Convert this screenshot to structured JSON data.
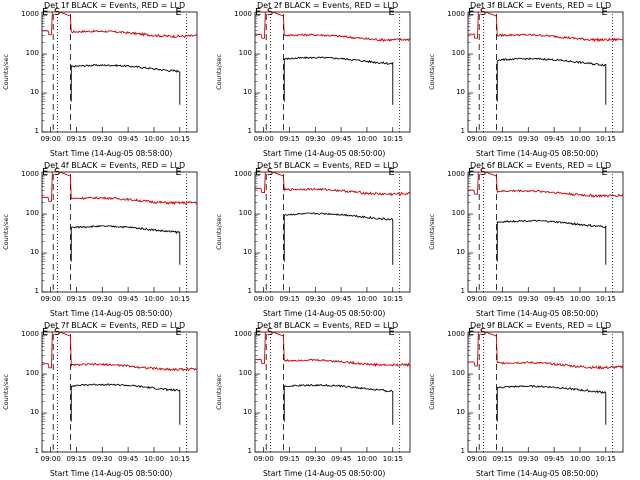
{
  "chart_data": [
    {
      "type": "line",
      "title": "Det 1f BLACK = Events, RED = LLD",
      "xlabel": "Start Time (14-Aug-05 08:58:00)",
      "ylabel": "Counts/sec",
      "xticks": [
        "09:00",
        "09:15",
        "09:30",
        "09:45",
        "10:00",
        "10:15"
      ],
      "yticks": [
        "1",
        "10",
        "100",
        "1000"
      ],
      "ylim": [
        1,
        1200
      ],
      "log_y": true,
      "markers": [
        "E",
        "S",
        "E"
      ],
      "series": [
        {
          "name": "RED = LLD",
          "color": "#cc0000",
          "level": 370
        },
        {
          "name": "BLACK = Events",
          "color": "#000000",
          "level": 48
        }
      ]
    },
    {
      "type": "line",
      "title": "Det 2f BLACK = Events, RED = LLD",
      "xlabel": "Start Time (14-Aug-05 08:50:00)",
      "ylabel": "Counts/sec",
      "xticks": [
        "09:00",
        "09:15",
        "09:30",
        "09:45",
        "10:00",
        "10:15"
      ],
      "yticks": [
        "1",
        "10",
        "100",
        "1000"
      ],
      "ylim": [
        1,
        1200
      ],
      "log_y": true,
      "markers": [
        "E",
        "S",
        "E"
      ],
      "series": [
        {
          "name": "RED = LLD",
          "color": "#cc0000",
          "level": 300
        },
        {
          "name": "BLACK = Events",
          "color": "#000000",
          "level": 75
        }
      ]
    },
    {
      "type": "line",
      "title": "Det 3f BLACK = Events, RED = LLD",
      "xlabel": "Start Time (14-Aug-05 08:50:00)",
      "ylabel": "Counts/sec",
      "xticks": [
        "09:00",
        "09:15",
        "09:30",
        "09:45",
        "10:00",
        "10:15"
      ],
      "yticks": [
        "1",
        "10",
        "100",
        "1000"
      ],
      "ylim": [
        1,
        1200
      ],
      "log_y": true,
      "markers": [
        "E",
        "S",
        "E"
      ],
      "series": [
        {
          "name": "RED = LLD",
          "color": "#cc0000",
          "level": 300
        },
        {
          "name": "BLACK = Events",
          "color": "#000000",
          "level": 70
        }
      ]
    },
    {
      "type": "line",
      "title": "Det 4f BLACK = Events, RED = LLD",
      "xlabel": "Start Time (14-Aug-05 08:50:00)",
      "ylabel": "Counts/sec",
      "xticks": [
        "09:00",
        "09:15",
        "09:30",
        "09:45",
        "10:00",
        "10:15"
      ],
      "yticks": [
        "1",
        "10",
        "100",
        "1000"
      ],
      "ylim": [
        1,
        1200
      ],
      "log_y": true,
      "markers": [
        "E",
        "S",
        "E"
      ],
      "series": [
        {
          "name": "RED = LLD",
          "color": "#cc0000",
          "level": 250
        },
        {
          "name": "BLACK = Events",
          "color": "#000000",
          "level": 45
        }
      ]
    },
    {
      "type": "line",
      "title": "Det 5f BLACK = Events, RED = LLD",
      "xlabel": "Start Time (14-Aug-05 08:50:00)",
      "ylabel": "Counts/sec",
      "xticks": [
        "09:00",
        "09:15",
        "09:30",
        "09:45",
        "10:00",
        "10:15"
      ],
      "yticks": [
        "1",
        "10",
        "100",
        "1000"
      ],
      "ylim": [
        1,
        1200
      ],
      "log_y": true,
      "markers": [
        "E",
        "S",
        "E"
      ],
      "series": [
        {
          "name": "RED = LLD",
          "color": "#cc0000",
          "level": 420
        },
        {
          "name": "BLACK = Events",
          "color": "#000000",
          "level": 95
        }
      ]
    },
    {
      "type": "line",
      "title": "Det 6f BLACK = Events, RED = LLD",
      "xlabel": "Start Time (14-Aug-05 08:50:00)",
      "ylabel": "Counts/sec",
      "xticks": [
        "09:00",
        "09:15",
        "09:30",
        "09:45",
        "10:00",
        "10:15"
      ],
      "yticks": [
        "1",
        "10",
        "100",
        "1000"
      ],
      "ylim": [
        1,
        1200
      ],
      "log_y": true,
      "markers": [
        "E",
        "S",
        "E"
      ],
      "series": [
        {
          "name": "RED = LLD",
          "color": "#cc0000",
          "level": 380
        },
        {
          "name": "BLACK = Events",
          "color": "#000000",
          "level": 62
        }
      ]
    },
    {
      "type": "line",
      "title": "Det 7f BLACK = Events, RED = LLD",
      "xlabel": "Start Time (14-Aug-05 08:50:00)",
      "ylabel": "Counts/sec",
      "xticks": [
        "09:00",
        "09:15",
        "09:30",
        "09:45",
        "10:00",
        "10:15"
      ],
      "yticks": [
        "1",
        "10",
        "100",
        "1000"
      ],
      "ylim": [
        1,
        1200
      ],
      "log_y": true,
      "markers": [
        "E",
        "S",
        "E"
      ],
      "series": [
        {
          "name": "RED = LLD",
          "color": "#cc0000",
          "level": 170
        },
        {
          "name": "BLACK = Events",
          "color": "#000000",
          "level": 50
        }
      ]
    },
    {
      "type": "line",
      "title": "Det 8f BLACK = Events, RED = LLD",
      "xlabel": "Start Time (14-Aug-05 08:50:00)",
      "ylabel": "Counts/sec",
      "xticks": [
        "09:00",
        "09:15",
        "09:30",
        "09:45",
        "10:00",
        "10:15"
      ],
      "yticks": [
        "1",
        "10",
        "100",
        "1000"
      ],
      "ylim": [
        1,
        1200
      ],
      "log_y": true,
      "markers": [
        "E",
        "S",
        "E"
      ],
      "series": [
        {
          "name": "RED = LLD",
          "color": "#cc0000",
          "level": 220
        },
        {
          "name": "BLACK = Events",
          "color": "#000000",
          "level": 48
        }
      ]
    },
    {
      "type": "line",
      "title": "Det 9f BLACK = Events, RED = LLD",
      "xlabel": "Start Time (14-Aug-05 08:50:00)",
      "ylabel": "Counts/sec",
      "xticks": [
        "09:00",
        "09:15",
        "09:30",
        "09:45",
        "10:00",
        "10:15"
      ],
      "yticks": [
        "1",
        "10",
        "100",
        "1000"
      ],
      "ylim": [
        1,
        1200
      ],
      "log_y": true,
      "markers": [
        "E",
        "S",
        "E"
      ],
      "series": [
        {
          "name": "RED = LLD",
          "color": "#cc0000",
          "level": 190
        },
        {
          "name": "BLACK = Events",
          "color": "#000000",
          "level": 45
        }
      ]
    }
  ]
}
